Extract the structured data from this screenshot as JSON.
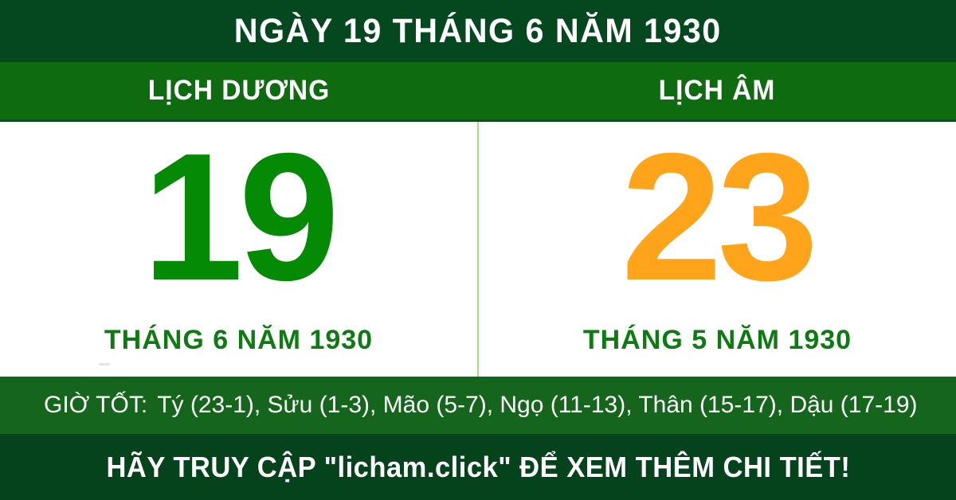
{
  "theme": {
    "header_bg": "#05471F",
    "subheader_bg": "#0E6B10",
    "panel_bg": "#FFFFFF",
    "panel_border": "#0B4D1B",
    "divider": "#ABD88B",
    "solar_number_color": "#048A04",
    "lunar_number_color": "#FFA41B",
    "month_label_color": "#0E7A12",
    "good_hours_bg": "#15661C",
    "footer_bg": "#05431D",
    "text_on_dark": "#FFFFFF"
  },
  "header": {
    "title": "NGÀY 19 THÁNG 6 NĂM 1930"
  },
  "columns": {
    "solar": {
      "header": "LỊCH DƯƠNG",
      "day": "19",
      "month_year": "THÁNG 6 NĂM 1930"
    },
    "lunar": {
      "header": "LỊCH ÂM",
      "day": "23",
      "month_year": "THÁNG 5 NĂM 1930"
    }
  },
  "good_hours": {
    "label": "GIỜ TỐT:",
    "items": [
      "Tý (23-1)",
      "Sửu (1-3)",
      "Mão (5-7)",
      "Ngọ (11-13)",
      "Thân (15-17)",
      "Dậu (17-19)"
    ]
  },
  "footer": {
    "text": "HÃY TRUY CẬP \"licham.click\" ĐỂ XEM THÊM CHI TIẾT!"
  }
}
